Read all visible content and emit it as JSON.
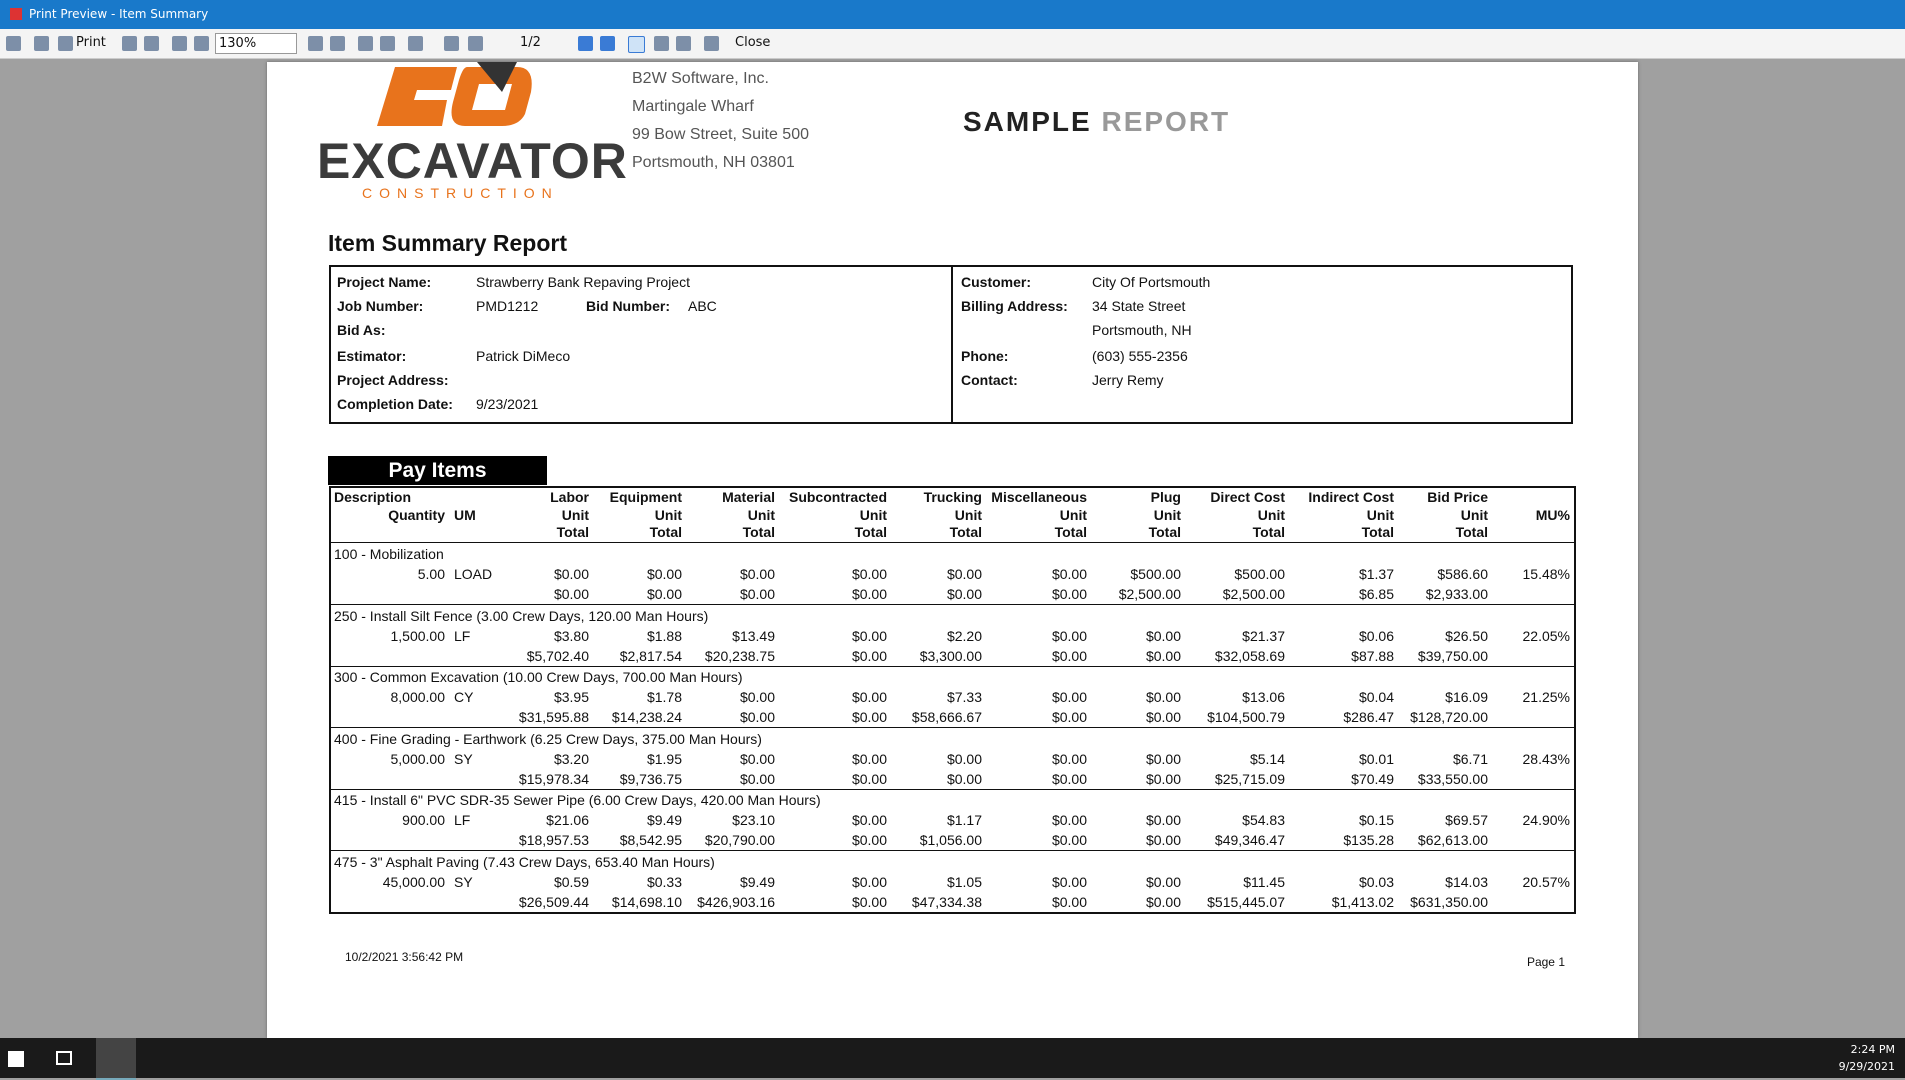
{
  "window": {
    "title": "Print Preview - Item Summary"
  },
  "toolbar": {
    "print": "Print",
    "zoom": "130%",
    "page": "1/2",
    "close": "Close"
  },
  "logo": {
    "name": "EXCAVATOR",
    "sub": "CONSTRUCTION"
  },
  "company": [
    "B2W Software, Inc.",
    "Martingale Wharf",
    "99 Bow Street, Suite 500",
    "Portsmouth, NH 03801"
  ],
  "banner": {
    "first": "SAMPLE",
    "second": "REPORT"
  },
  "report_title": "Item Summary Report",
  "info_left": [
    {
      "label": "Project Name:",
      "value": "Strawberry Bank Repaving Project"
    },
    {
      "label": "Job Number:",
      "value": "PMD1212"
    },
    {
      "label": "Bid As:",
      "value": ""
    },
    {
      "label": "Estimator:",
      "value": "Patrick DiMeco"
    },
    {
      "label": "Project Address:",
      "value": ""
    },
    {
      "label": "Completion Date:",
      "value": "9/23/2021"
    }
  ],
  "bid_number": {
    "label": "Bid Number:",
    "value": "ABC"
  },
  "info_right": [
    {
      "label": "Customer:",
      "value": "City Of Portsmouth"
    },
    {
      "label": "Billing Address:",
      "value": "34 State Street"
    },
    {
      "label": "",
      "value": "Portsmouth, NH"
    },
    {
      "label": "Phone:",
      "value": "(603) 555-2356"
    },
    {
      "label": "Contact:",
      "value": "Jerry Remy"
    }
  ],
  "section_title": "Pay Items",
  "table": {
    "description": "Description",
    "quantity": "Quantity",
    "um": "UM",
    "unit_label": "Unit",
    "total_label": "Total",
    "mu": "MU%",
    "columns": [
      "Labor",
      "Equipment",
      "Material",
      "Subcontracted",
      "Trucking",
      "Miscellaneous",
      "Plug",
      "Direct Cost",
      "Indirect Cost",
      "Bid Price"
    ],
    "items": [
      {
        "title": "100 - Mobilization",
        "quantity": "5.00",
        "um": "LOAD",
        "unit": [
          "$0.00",
          "$0.00",
          "$0.00",
          "$0.00",
          "$0.00",
          "$0.00",
          "$500.00",
          "$500.00",
          "$1.37",
          "$586.60"
        ],
        "mu": "15.48%",
        "total": [
          "$0.00",
          "$0.00",
          "$0.00",
          "$0.00",
          "$0.00",
          "$0.00",
          "$2,500.00",
          "$2,500.00",
          "$6.85",
          "$2,933.00"
        ]
      },
      {
        "title": "250 - Install Silt Fence (3.00 Crew Days, 120.00 Man Hours)",
        "quantity": "1,500.00",
        "um": "LF",
        "unit": [
          "$3.80",
          "$1.88",
          "$13.49",
          "$0.00",
          "$2.20",
          "$0.00",
          "$0.00",
          "$21.37",
          "$0.06",
          "$26.50"
        ],
        "mu": "22.05%",
        "total": [
          "$5,702.40",
          "$2,817.54",
          "$20,238.75",
          "$0.00",
          "$3,300.00",
          "$0.00",
          "$0.00",
          "$32,058.69",
          "$87.88",
          "$39,750.00"
        ]
      },
      {
        "title": "300 - Common Excavation (10.00 Crew Days, 700.00 Man Hours)",
        "quantity": "8,000.00",
        "um": "CY",
        "unit": [
          "$3.95",
          "$1.78",
          "$0.00",
          "$0.00",
          "$7.33",
          "$0.00",
          "$0.00",
          "$13.06",
          "$0.04",
          "$16.09"
        ],
        "mu": "21.25%",
        "total": [
          "$31,595.88",
          "$14,238.24",
          "$0.00",
          "$0.00",
          "$58,666.67",
          "$0.00",
          "$0.00",
          "$104,500.79",
          "$286.47",
          "$128,720.00"
        ]
      },
      {
        "title": "400 - Fine Grading - Earthwork (6.25 Crew Days, 375.00 Man Hours)",
        "quantity": "5,000.00",
        "um": "SY",
        "unit": [
          "$3.20",
          "$1.95",
          "$0.00",
          "$0.00",
          "$0.00",
          "$0.00",
          "$0.00",
          "$5.14",
          "$0.01",
          "$6.71"
        ],
        "mu": "28.43%",
        "total": [
          "$15,978.34",
          "$9,736.75",
          "$0.00",
          "$0.00",
          "$0.00",
          "$0.00",
          "$0.00",
          "$25,715.09",
          "$70.49",
          "$33,550.00"
        ]
      },
      {
        "title": "415 - Install 6\" PVC SDR-35 Sewer Pipe (6.00 Crew Days, 420.00 Man Hours)",
        "quantity": "900.00",
        "um": "LF",
        "unit": [
          "$21.06",
          "$9.49",
          "$23.10",
          "$0.00",
          "$1.17",
          "$0.00",
          "$0.00",
          "$54.83",
          "$0.15",
          "$69.57"
        ],
        "mu": "24.90%",
        "total": [
          "$18,957.53",
          "$8,542.95",
          "$20,790.00",
          "$0.00",
          "$1,056.00",
          "$0.00",
          "$0.00",
          "$49,346.47",
          "$135.28",
          "$62,613.00"
        ]
      },
      {
        "title": "475 - 3\" Asphalt Paving (7.43 Crew Days, 653.40 Man Hours)",
        "quantity": "45,000.00",
        "um": "SY",
        "unit": [
          "$0.59",
          "$0.33",
          "$9.49",
          "$0.00",
          "$1.05",
          "$0.00",
          "$0.00",
          "$11.45",
          "$0.03",
          "$14.03"
        ],
        "mu": "20.57%",
        "total": [
          "$26,509.44",
          "$14,698.10",
          "$426,903.16",
          "$0.00",
          "$47,334.38",
          "$0.00",
          "$0.00",
          "$515,445.07",
          "$1,413.02",
          "$631,350.00"
        ]
      }
    ]
  },
  "footer": {
    "timestamp": "10/2/2021 3:56:42 PM",
    "page": "Page 1"
  },
  "taskbar": {
    "time": "2:24 PM",
    "date": "9/29/2021"
  }
}
